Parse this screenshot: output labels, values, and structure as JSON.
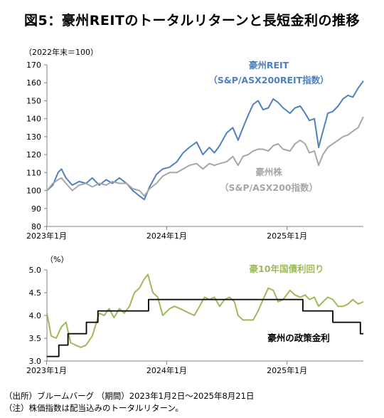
{
  "title": "図5：豪州REITのトータルリターンと長短金利の推移",
  "notes": [
    "（出所）ブルームバーグ （期間）2023年1月2日～2025年8月21日",
    "（注）株価指数は配当込みのトータルリターン。"
  ],
  "colors": {
    "reit": "#4f81bd",
    "stock": "#a6a6a6",
    "bond": "#9bbb59",
    "policy": "#000000",
    "axis": "#808080"
  },
  "chart_data": [
    {
      "type": "line",
      "unit_label": "（2022年末＝100）",
      "x_tick_labels": [
        "2023年1月",
        "2024年1月",
        "2025年1月"
      ],
      "x_ticks": [
        "2023-01",
        "2024-01",
        "2025-01"
      ],
      "x_range": [
        "2023-01-02",
        "2025-08-21"
      ],
      "ylim": [
        80,
        170
      ],
      "y_ticks": [
        80,
        90,
        100,
        110,
        120,
        130,
        140,
        150,
        160,
        170
      ],
      "grid": false,
      "series": [
        {
          "name": "豪州REIT",
          "label_lines": [
            "豪州REIT",
            "（S&P/ASX200REIT指数）"
          ],
          "color": "#4f81bd",
          "points": [
            [
              "2023-01-02",
              100
            ],
            [
              "2023-01-20",
              103
            ],
            [
              "2023-02-05",
              110
            ],
            [
              "2023-02-15",
              112
            ],
            [
              "2023-03-01",
              107
            ],
            [
              "2023-03-20",
              103
            ],
            [
              "2023-04-10",
              105
            ],
            [
              "2023-05-01",
              104
            ],
            [
              "2023-05-20",
              107
            ],
            [
              "2023-06-10",
              103
            ],
            [
              "2023-07-01",
              106
            ],
            [
              "2023-07-20",
              104
            ],
            [
              "2023-08-10",
              107
            ],
            [
              "2023-09-01",
              104
            ],
            [
              "2023-09-20",
              100
            ],
            [
              "2023-10-10",
              97
            ],
            [
              "2023-10-25",
              95
            ],
            [
              "2023-11-10",
              102
            ],
            [
              "2023-12-01",
              109
            ],
            [
              "2023-12-20",
              112
            ],
            [
              "2024-01-10",
              113
            ],
            [
              "2024-02-01",
              116
            ],
            [
              "2024-02-20",
              121
            ],
            [
              "2024-03-10",
              124
            ],
            [
              "2024-04-01",
              127
            ],
            [
              "2024-04-20",
              120
            ],
            [
              "2024-05-10",
              124
            ],
            [
              "2024-05-25",
              121
            ],
            [
              "2024-06-10",
              125
            ],
            [
              "2024-07-01",
              132
            ],
            [
              "2024-07-20",
              135
            ],
            [
              "2024-08-05",
              128
            ],
            [
              "2024-08-20",
              135
            ],
            [
              "2024-09-05",
              142
            ],
            [
              "2024-09-20",
              148
            ],
            [
              "2024-10-05",
              150
            ],
            [
              "2024-10-20",
              145
            ],
            [
              "2024-11-05",
              146
            ],
            [
              "2024-11-20",
              151
            ],
            [
              "2024-12-05",
              149
            ],
            [
              "2024-12-20",
              146
            ],
            [
              "2025-01-10",
              143
            ],
            [
              "2025-01-25",
              146
            ],
            [
              "2025-02-10",
              147
            ],
            [
              "2025-02-25",
              143
            ],
            [
              "2025-03-10",
              139
            ],
            [
              "2025-03-25",
              140
            ],
            [
              "2025-04-07",
              124
            ],
            [
              "2025-04-20",
              133
            ],
            [
              "2025-05-05",
              143
            ],
            [
              "2025-05-20",
              144
            ],
            [
              "2025-06-05",
              147
            ],
            [
              "2025-06-20",
              151
            ],
            [
              "2025-07-05",
              153
            ],
            [
              "2025-07-20",
              152
            ],
            [
              "2025-08-05",
              157
            ],
            [
              "2025-08-21",
              161
            ]
          ]
        },
        {
          "name": "豪州株",
          "label_lines": [
            "豪州株",
            "（S&P/ASX200指数）"
          ],
          "color": "#a6a6a6",
          "points": [
            [
              "2023-01-02",
              100
            ],
            [
              "2023-01-20",
              104
            ],
            [
              "2023-02-05",
              106
            ],
            [
              "2023-02-15",
              107
            ],
            [
              "2023-03-01",
              104
            ],
            [
              "2023-03-20",
              100
            ],
            [
              "2023-04-10",
              103
            ],
            [
              "2023-05-01",
              104
            ],
            [
              "2023-05-20",
              102
            ],
            [
              "2023-06-10",
              104
            ],
            [
              "2023-07-01",
              103
            ],
            [
              "2023-07-20",
              105
            ],
            [
              "2023-08-10",
              104
            ],
            [
              "2023-09-01",
              104
            ],
            [
              "2023-09-20",
              101
            ],
            [
              "2023-10-10",
              100
            ],
            [
              "2023-10-25",
              97
            ],
            [
              "2023-11-10",
              101
            ],
            [
              "2023-12-01",
              104
            ],
            [
              "2023-12-20",
              108
            ],
            [
              "2024-01-10",
              110
            ],
            [
              "2024-02-01",
              110
            ],
            [
              "2024-02-20",
              112
            ],
            [
              "2024-03-10",
              114
            ],
            [
              "2024-04-01",
              115
            ],
            [
              "2024-04-20",
              112
            ],
            [
              "2024-05-10",
              115
            ],
            [
              "2024-05-25",
              114
            ],
            [
              "2024-06-10",
              115
            ],
            [
              "2024-07-01",
              116
            ],
            [
              "2024-07-20",
              119
            ],
            [
              "2024-08-05",
              114
            ],
            [
              "2024-08-20",
              119
            ],
            [
              "2024-09-05",
              120
            ],
            [
              "2024-09-20",
              122
            ],
            [
              "2024-10-05",
              123
            ],
            [
              "2024-10-20",
              123
            ],
            [
              "2024-11-05",
              122
            ],
            [
              "2024-11-20",
              125
            ],
            [
              "2024-12-05",
              126
            ],
            [
              "2024-12-20",
              123
            ],
            [
              "2025-01-10",
              122
            ],
            [
              "2025-01-25",
              126
            ],
            [
              "2025-02-10",
              128
            ],
            [
              "2025-02-25",
              126
            ],
            [
              "2025-03-10",
              121
            ],
            [
              "2025-03-25",
              122
            ],
            [
              "2025-04-07",
              114
            ],
            [
              "2025-04-20",
              120
            ],
            [
              "2025-05-05",
              124
            ],
            [
              "2025-05-20",
              126
            ],
            [
              "2025-06-05",
              128
            ],
            [
              "2025-06-20",
              130
            ],
            [
              "2025-07-05",
              131
            ],
            [
              "2025-07-20",
              133
            ],
            [
              "2025-08-05",
              135
            ],
            [
              "2025-08-21",
              141
            ]
          ]
        }
      ]
    },
    {
      "type": "line",
      "unit_label": "（%）",
      "x_tick_labels": [
        "2023年1月",
        "2024年1月",
        "2025年1月"
      ],
      "x_ticks": [
        "2023-01",
        "2024-01",
        "2025-01"
      ],
      "x_range": [
        "2023-01-02",
        "2025-08-21"
      ],
      "ylim": [
        3.0,
        5.0
      ],
      "y_ticks": [
        "3.0",
        "3.5",
        "4.0",
        "4.5",
        "5.0"
      ],
      "grid": false,
      "series": [
        {
          "name": "豪10年国債利回り",
          "label_lines": [
            "豪10年国債利回り"
          ],
          "color": "#9bbb59",
          "step": false,
          "points": [
            [
              "2023-01-02",
              4.05
            ],
            [
              "2023-01-15",
              3.55
            ],
            [
              "2023-01-30",
              3.5
            ],
            [
              "2023-02-15",
              3.75
            ],
            [
              "2023-03-01",
              3.85
            ],
            [
              "2023-03-15",
              3.4
            ],
            [
              "2023-03-30",
              3.35
            ],
            [
              "2023-04-15",
              3.3
            ],
            [
              "2023-05-01",
              3.35
            ],
            [
              "2023-05-20",
              3.55
            ],
            [
              "2023-06-10",
              4.05
            ],
            [
              "2023-06-25",
              4.0
            ],
            [
              "2023-07-10",
              4.15
            ],
            [
              "2023-07-25",
              3.95
            ],
            [
              "2023-08-10",
              4.15
            ],
            [
              "2023-08-25",
              4.05
            ],
            [
              "2023-09-10",
              4.2
            ],
            [
              "2023-09-25",
              4.5
            ],
            [
              "2023-10-10",
              4.6
            ],
            [
              "2023-10-25",
              4.8
            ],
            [
              "2023-11-05",
              4.9
            ],
            [
              "2023-11-20",
              4.5
            ],
            [
              "2023-12-05",
              4.4
            ],
            [
              "2023-12-20",
              4.0
            ],
            [
              "2024-01-10",
              4.15
            ],
            [
              "2024-01-25",
              4.2
            ],
            [
              "2024-02-10",
              4.15
            ],
            [
              "2024-02-25",
              4.1
            ],
            [
              "2024-03-10",
              4.05
            ],
            [
              "2024-03-25",
              4.0
            ],
            [
              "2024-04-10",
              4.2
            ],
            [
              "2024-04-25",
              4.4
            ],
            [
              "2024-05-10",
              4.35
            ],
            [
              "2024-05-25",
              4.4
            ],
            [
              "2024-06-10",
              4.2
            ],
            [
              "2024-06-25",
              4.35
            ],
            [
              "2024-07-10",
              4.4
            ],
            [
              "2024-07-25",
              4.3
            ],
            [
              "2024-08-05",
              4.0
            ],
            [
              "2024-08-20",
              3.9
            ],
            [
              "2024-09-05",
              3.9
            ],
            [
              "2024-09-20",
              3.9
            ],
            [
              "2024-10-05",
              4.1
            ],
            [
              "2024-10-20",
              4.35
            ],
            [
              "2024-11-05",
              4.6
            ],
            [
              "2024-11-20",
              4.55
            ],
            [
              "2024-12-05",
              4.3
            ],
            [
              "2024-12-20",
              4.35
            ],
            [
              "2025-01-10",
              4.55
            ],
            [
              "2025-01-25",
              4.45
            ],
            [
              "2025-02-10",
              4.4
            ],
            [
              "2025-02-25",
              4.45
            ],
            [
              "2025-03-10",
              4.35
            ],
            [
              "2025-03-25",
              4.4
            ],
            [
              "2025-04-07",
              4.2
            ],
            [
              "2025-04-20",
              4.3
            ],
            [
              "2025-05-05",
              4.4
            ],
            [
              "2025-05-20",
              4.35
            ],
            [
              "2025-06-05",
              4.2
            ],
            [
              "2025-06-20",
              4.2
            ],
            [
              "2025-07-05",
              4.25
            ],
            [
              "2025-07-20",
              4.35
            ],
            [
              "2025-08-05",
              4.25
            ],
            [
              "2025-08-21",
              4.3
            ]
          ]
        },
        {
          "name": "豪州の政策金利",
          "label_lines": [
            "豪州の政策金利"
          ],
          "color": "#000000",
          "step": true,
          "points": [
            [
              "2023-01-02",
              3.1
            ],
            [
              "2023-02-07",
              3.35
            ],
            [
              "2023-03-07",
              3.6
            ],
            [
              "2023-05-02",
              3.85
            ],
            [
              "2023-06-06",
              4.1
            ],
            [
              "2023-11-07",
              4.35
            ],
            [
              "2025-02-18",
              4.1
            ],
            [
              "2025-05-20",
              3.85
            ],
            [
              "2025-08-12",
              3.6
            ],
            [
              "2025-08-21",
              3.6
            ]
          ]
        }
      ]
    }
  ]
}
